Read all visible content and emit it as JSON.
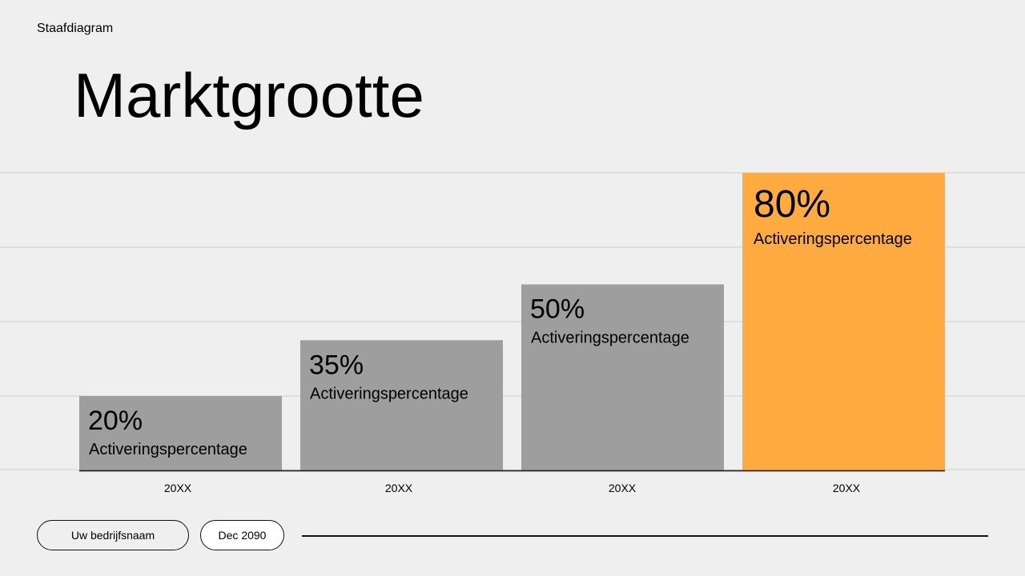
{
  "slide": {
    "section_label": "Staafdiagram",
    "title": "Marktgrootte",
    "footer": {
      "company": "Uw bedrijfsnaam",
      "date": "Dec 2090"
    }
  },
  "chart_data": {
    "type": "bar",
    "categories": [
      "20XX",
      "20XX",
      "20XX",
      "20XX"
    ],
    "values": [
      20,
      35,
      50,
      80
    ],
    "data_labels": [
      "20%",
      "35%",
      "50%",
      "80%"
    ],
    "bar_caption": "Activeringspercentage",
    "ylim": [
      0,
      80
    ],
    "y_gridlines": [
      20,
      40,
      60,
      80
    ],
    "grid": true,
    "colors": {
      "default": "#9e9e9e",
      "highlight": "#ffab40",
      "grid": "#cfcfcf",
      "axis": "#111111"
    },
    "highlight_index": 3
  }
}
